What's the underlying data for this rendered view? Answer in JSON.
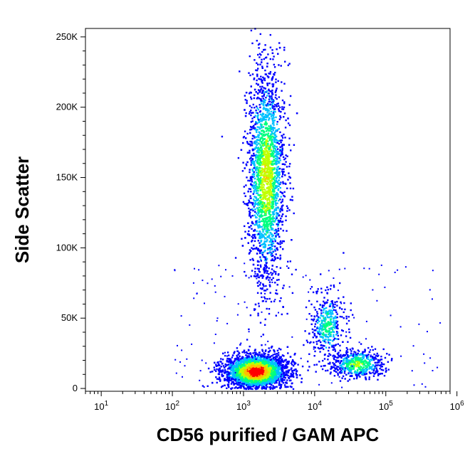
{
  "chart_data": {
    "type": "scatter",
    "subtype": "flow-cytometry density plot",
    "xlabel": "CD56 purified / GAM APC",
    "ylabel": "Side Scatter",
    "x_scale": "log",
    "y_scale": "linear",
    "xlim": [
      6,
      800000
    ],
    "ylim": [
      -2000,
      256000
    ],
    "x_ticks": [
      {
        "value": 10,
        "base": "10",
        "exp": "1"
      },
      {
        "value": 100,
        "base": "10",
        "exp": "2"
      },
      {
        "value": 1000,
        "base": "10",
        "exp": "3"
      },
      {
        "value": 10000,
        "base": "10",
        "exp": "4"
      },
      {
        "value": 100000,
        "base": "10",
        "exp": "5"
      },
      {
        "value": 1000000,
        "base": "10",
        "exp": "6"
      }
    ],
    "y_ticks": [
      {
        "value": 0,
        "label": "0"
      },
      {
        "value": 50000,
        "label": "50K"
      },
      {
        "value": 100000,
        "label": "100K"
      },
      {
        "value": 150000,
        "label": "150K"
      },
      {
        "value": 200000,
        "label": "200K"
      },
      {
        "value": 250000,
        "label": "250K"
      }
    ],
    "grid": false,
    "legend": "none",
    "color_scale": [
      "#0000ff",
      "#00c0ff",
      "#00ff80",
      "#c0ff00",
      "#ffc000",
      "#ff0000"
    ],
    "populations": [
      {
        "x_center": 1500,
        "x_spread_decades": 0.22,
        "y_center": 12000,
        "y_spread": 6000,
        "count": 3200,
        "peak_density": 1.0
      },
      {
        "x_center": 2100,
        "x_spread_decades": 0.13,
        "y_center": 150000,
        "y_spread": 38000,
        "count": 2600,
        "peak_density": 0.65
      },
      {
        "x_center": 15000,
        "x_spread_decades": 0.12,
        "y_center": 45000,
        "y_spread": 12000,
        "count": 420,
        "peak_density": 0.4
      },
      {
        "x_center": 40000,
        "x_spread_decades": 0.18,
        "y_center": 17000,
        "y_spread": 5000,
        "count": 520,
        "peak_density": 0.55
      }
    ]
  }
}
